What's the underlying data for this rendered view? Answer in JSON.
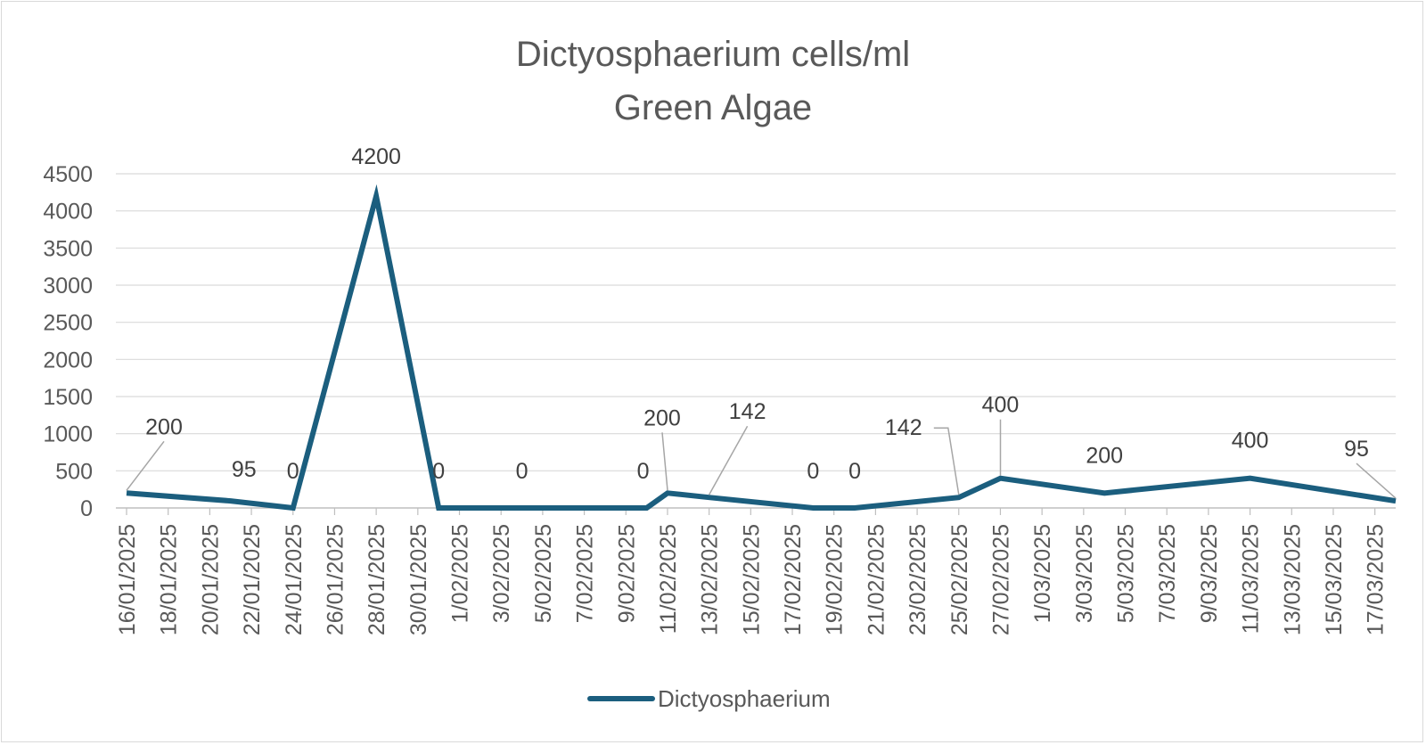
{
  "chart_data": {
    "type": "line",
    "title": [
      "Dictyosphaerium cells/ml",
      "Green Algae"
    ],
    "xlabel": "",
    "ylabel": "",
    "ylim": [
      0,
      4500
    ],
    "y_ticks": [
      0,
      500,
      1000,
      1500,
      2000,
      2500,
      3000,
      3500,
      4000,
      4500
    ],
    "x_range": [
      "16/01/2025",
      "18/03/2025"
    ],
    "x_tick_labels": [
      "16/01/2025",
      "18/01/2025",
      "20/01/2025",
      "22/01/2025",
      "24/01/2025",
      "26/01/2025",
      "28/01/2025",
      "30/01/2025",
      "1/02/2025",
      "3/02/2025",
      "5/02/2025",
      "7/02/2025",
      "9/02/2025",
      "11/02/2025",
      "13/02/2025",
      "15/02/2025",
      "17/02/2025",
      "19/02/2025",
      "21/02/2025",
      "23/02/2025",
      "25/02/2025",
      "27/02/2025",
      "1/03/2025",
      "3/03/2025",
      "5/03/2025",
      "7/03/2025",
      "9/03/2025",
      "11/03/2025",
      "13/03/2025",
      "15/03/2025",
      "17/03/2025"
    ],
    "grid": true,
    "legend_position": "bottom",
    "series": [
      {
        "name": "Dictyosphaerium",
        "color": "#1b5e7e",
        "points": [
          {
            "x": "16/01/2025",
            "y": 200,
            "label": "200"
          },
          {
            "x": "21/01/2025",
            "y": 95,
            "label": "95"
          },
          {
            "x": "24/01/2025",
            "y": 0,
            "label": "0"
          },
          {
            "x": "28/01/2025",
            "y": 4200,
            "label": "4200"
          },
          {
            "x": "31/01/2025",
            "y": 0,
            "label": "0"
          },
          {
            "x": "4/02/2025",
            "y": 0,
            "label": "0"
          },
          {
            "x": "10/02/2025",
            "y": 0,
            "label": "0"
          },
          {
            "x": "11/02/2025",
            "y": 200,
            "label": "200"
          },
          {
            "x": "13/02/2025",
            "y": 142,
            "label": "142"
          },
          {
            "x": "18/02/2025",
            "y": 0,
            "label": "0"
          },
          {
            "x": "20/02/2025",
            "y": 0,
            "label": "0"
          },
          {
            "x": "25/02/2025",
            "y": 142,
            "label": "142"
          },
          {
            "x": "27/02/2025",
            "y": 400,
            "label": "400"
          },
          {
            "x": "4/03/2025",
            "y": 200,
            "label": "200"
          },
          {
            "x": "11/03/2025",
            "y": 400,
            "label": "400"
          },
          {
            "x": "18/03/2025",
            "y": 95,
            "label": "95"
          }
        ]
      }
    ]
  }
}
